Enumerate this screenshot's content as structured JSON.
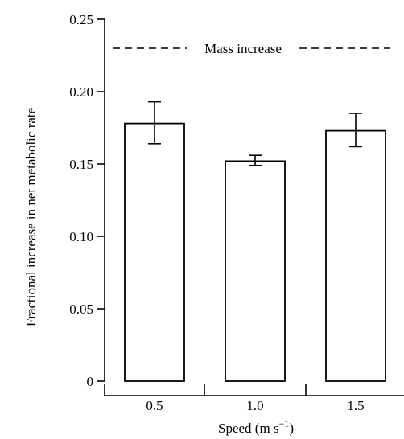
{
  "chart_data": {
    "type": "bar",
    "categories": [
      "0.5",
      "1.0",
      "1.5"
    ],
    "values": [
      0.178,
      0.152,
      0.173
    ],
    "error_low": [
      0.164,
      0.149,
      0.162
    ],
    "error_high": [
      0.193,
      0.156,
      0.185
    ],
    "ylabel": "Fractional increase in net metabolic rate",
    "xlabel_main": "Speed (m s",
    "xlabel_sup": "−1",
    "xlabel_close": ")",
    "ylim": [
      0,
      0.25
    ],
    "yticks": [
      0,
      0.05,
      0.1,
      0.15,
      0.2,
      0.25
    ],
    "ytick_labels": [
      "0",
      "0.05",
      "0.10",
      "0.15",
      "0.20",
      "0.25"
    ],
    "reference_line": {
      "value": 0.23,
      "label": "Mass increase",
      "style": "dashed"
    },
    "grid": false,
    "bar_fill": "#ffffff",
    "stroke": "#000000"
  }
}
